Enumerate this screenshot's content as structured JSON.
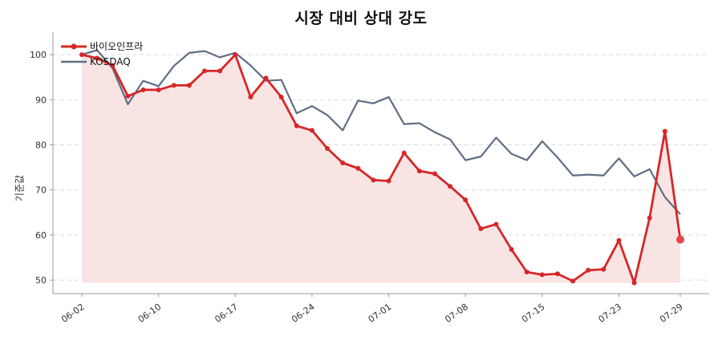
{
  "chart_data": {
    "type": "line",
    "title": "시장 대비 상대 강도",
    "xlabel": "",
    "ylabel": "기준값",
    "ylim": [
      47,
      105
    ],
    "yticks": [
      50,
      60,
      70,
      80,
      90,
      100
    ],
    "grid": true,
    "legend_position": "top-left",
    "x_tick_labels": [
      "06-02",
      "06-10",
      "06-17",
      "06-24",
      "07-01",
      "07-08",
      "07-15",
      "07-23",
      "07-29"
    ],
    "x_tick_index": [
      0,
      5,
      10,
      15,
      20,
      25,
      30,
      35,
      39
    ],
    "colors": {
      "stock": "#d62728",
      "index": "#5f6e84",
      "fill": "#f9e4e4",
      "grid": "#d9d9d9"
    },
    "series": [
      {
        "name": "바이오인프라",
        "values": [
          100.0,
          99.2,
          97.6,
          90.8,
          92.2,
          92.2,
          93.2,
          93.2,
          96.4,
          96.4,
          100.0,
          90.6,
          94.8,
          90.6,
          84.2,
          83.2,
          79.2,
          76.0,
          74.8,
          72.2,
          72.0,
          78.2,
          74.2,
          73.6,
          70.8,
          67.8,
          61.4,
          62.4,
          56.8,
          51.8,
          51.2,
          51.4,
          49.8,
          52.2,
          52.4,
          58.8,
          49.4,
          63.8,
          83.0,
          59.0
        ]
      },
      {
        "name": "KOSDAQ",
        "values": [
          100.0,
          101.0,
          97.0,
          89.0,
          94.2,
          93.0,
          97.5,
          100.4,
          100.8,
          99.4,
          100.4,
          97.6,
          94.2,
          94.4,
          87.0,
          88.6,
          86.6,
          83.2,
          89.8,
          89.2,
          90.6,
          84.6,
          84.8,
          82.8,
          81.2,
          76.6,
          77.4,
          81.6,
          78.0,
          76.6,
          80.8,
          77.2,
          73.2,
          73.4,
          73.2,
          77.0,
          73.0,
          74.6,
          68.4,
          64.6
        ]
      }
    ]
  }
}
